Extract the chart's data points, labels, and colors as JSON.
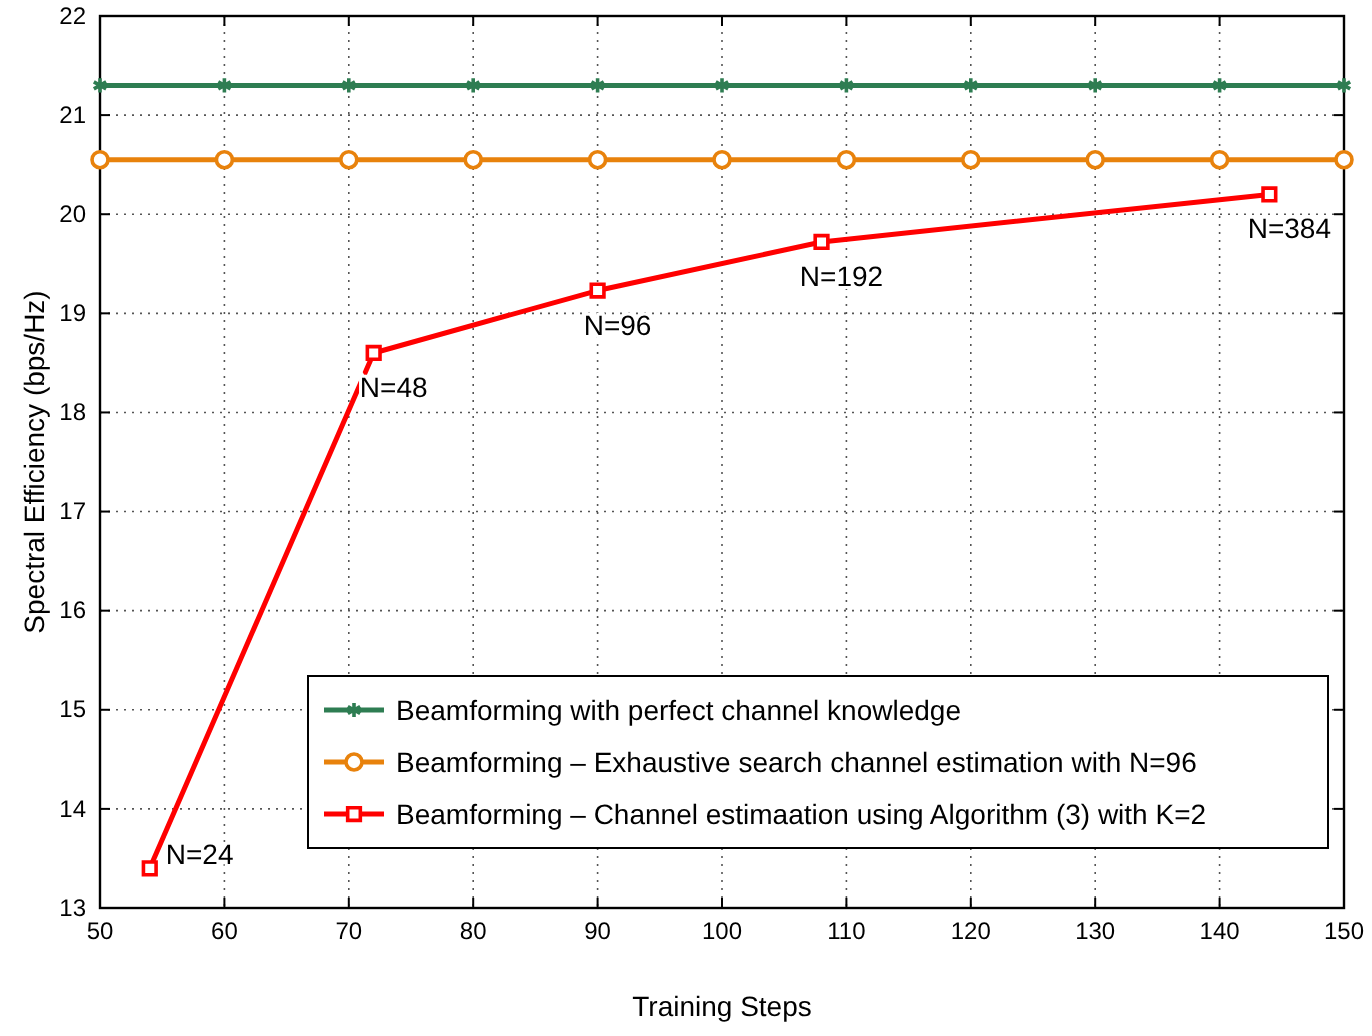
{
  "chart_data": {
    "type": "line",
    "xlabel": "Training Steps",
    "ylabel": "Spectral Efficiency (bps/Hz)",
    "xlim": [
      50,
      150
    ],
    "xticks": [
      50,
      60,
      70,
      80,
      90,
      100,
      110,
      120,
      130,
      140,
      150
    ],
    "ylim": [
      13,
      22
    ],
    "yticks": [
      13,
      14,
      15,
      16,
      17,
      18,
      19,
      20,
      21,
      22
    ],
    "grid": true,
    "legend": "bottom right",
    "line_style": "solid",
    "series": [
      {
        "name": "Beamforming with perfect channel knowledge",
        "color": "#2e7d52",
        "marker": "cross",
        "x": [
          50,
          60,
          70,
          80,
          90,
          100,
          110,
          120,
          130,
          140,
          150
        ],
        "values": [
          21.3,
          21.3,
          21.3,
          21.3,
          21.3,
          21.3,
          21.3,
          21.3,
          21.3,
          21.3,
          21.3
        ]
      },
      {
        "name": "Beamforming – Exhaustive search channel estimation with N=96",
        "color": "#e8820c",
        "marker": "circle",
        "x": [
          50,
          60,
          70,
          80,
          90,
          100,
          110,
          120,
          130,
          140,
          150
        ],
        "values": [
          20.55,
          20.55,
          20.55,
          20.55,
          20.55,
          20.55,
          20.55,
          20.55,
          20.55,
          20.55,
          20.55
        ]
      },
      {
        "name": "Beamforming – Channel estimaation using Algorithm (3) with K=2",
        "color": "#ff0000",
        "marker": "square",
        "x": [
          54,
          72,
          90,
          108,
          144
        ],
        "values": [
          13.4,
          18.6,
          19.23,
          19.72,
          20.2
        ]
      }
    ],
    "annotations": [
      {
        "text": "N=24",
        "x": 54,
        "y": 13.4
      },
      {
        "text": "N=48",
        "x": 72,
        "y": 18.6
      },
      {
        "text": "N=96",
        "x": 90,
        "y": 19.23
      },
      {
        "text": "N=192",
        "x": 108,
        "y": 19.72
      },
      {
        "text": "N=384",
        "x": 144,
        "y": 20.2
      }
    ]
  }
}
